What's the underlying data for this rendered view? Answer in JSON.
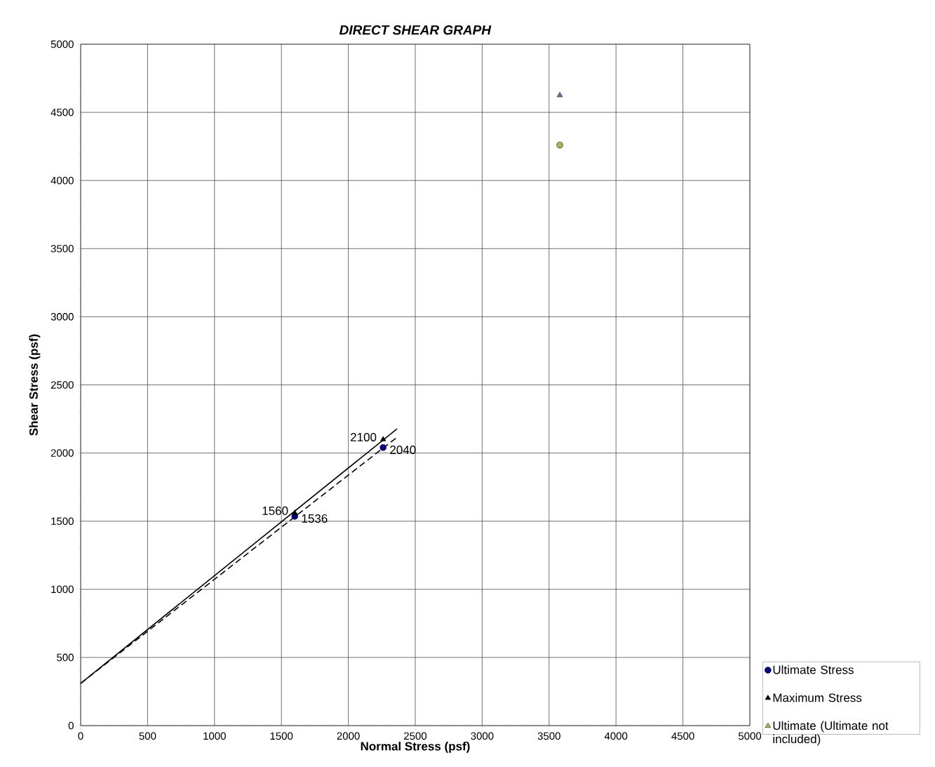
{
  "chart_data": {
    "type": "scatter",
    "title": "*DIRECT SHEAR GRAPH*",
    "xlabel": "Normal Stress (psf)",
    "ylabel": "Shear Stress (psf)",
    "xlim": [
      0,
      5000
    ],
    "ylim": [
      0,
      5000
    ],
    "xticks": [
      0,
      500,
      1000,
      1500,
      2000,
      2500,
      3000,
      3500,
      4000,
      4500,
      5000
    ],
    "yticks": [
      0,
      500,
      1000,
      1500,
      2000,
      2500,
      3000,
      3500,
      4000,
      4500,
      5000
    ],
    "grid": true,
    "legend": "bottom right",
    "series": [
      {
        "name": "Ultimate Stress",
        "marker": "circle",
        "color": "#000080",
        "x": [
          1600,
          2260
        ],
        "values": [
          1536,
          2040
        ],
        "value_labels": [
          "1536",
          "2040"
        ]
      },
      {
        "name": "Maximum Stress",
        "marker": "triangle",
        "color": "#000000",
        "x": [
          1600,
          2260
        ],
        "values": [
          1560,
          2100
        ],
        "value_labels": [
          "1560",
          "2100"
        ]
      },
      {
        "name": "Ultimate (Ultimate not included)",
        "marker": "triangle",
        "color": "#9bbb59"
      },
      {
        "marker": "triangle",
        "color": "#8064a2",
        "x": [
          3580
        ],
        "values": [
          4625
        ]
      },
      {
        "marker": "circle",
        "color": "#9bbb59",
        "x": [
          3580
        ],
        "values": [
          4260
        ]
      },
      {
        "type": "line",
        "color": "#000000",
        "line_style": "solid",
        "marker": "none",
        "x": [
          0,
          2364
        ],
        "values": [
          310,
          2178
        ]
      },
      {
        "type": "line",
        "color": "#000000",
        "line_style": "dashed",
        "marker": "none",
        "x": [
          0,
          2364
        ],
        "values": [
          310,
          2116
        ]
      }
    ]
  }
}
